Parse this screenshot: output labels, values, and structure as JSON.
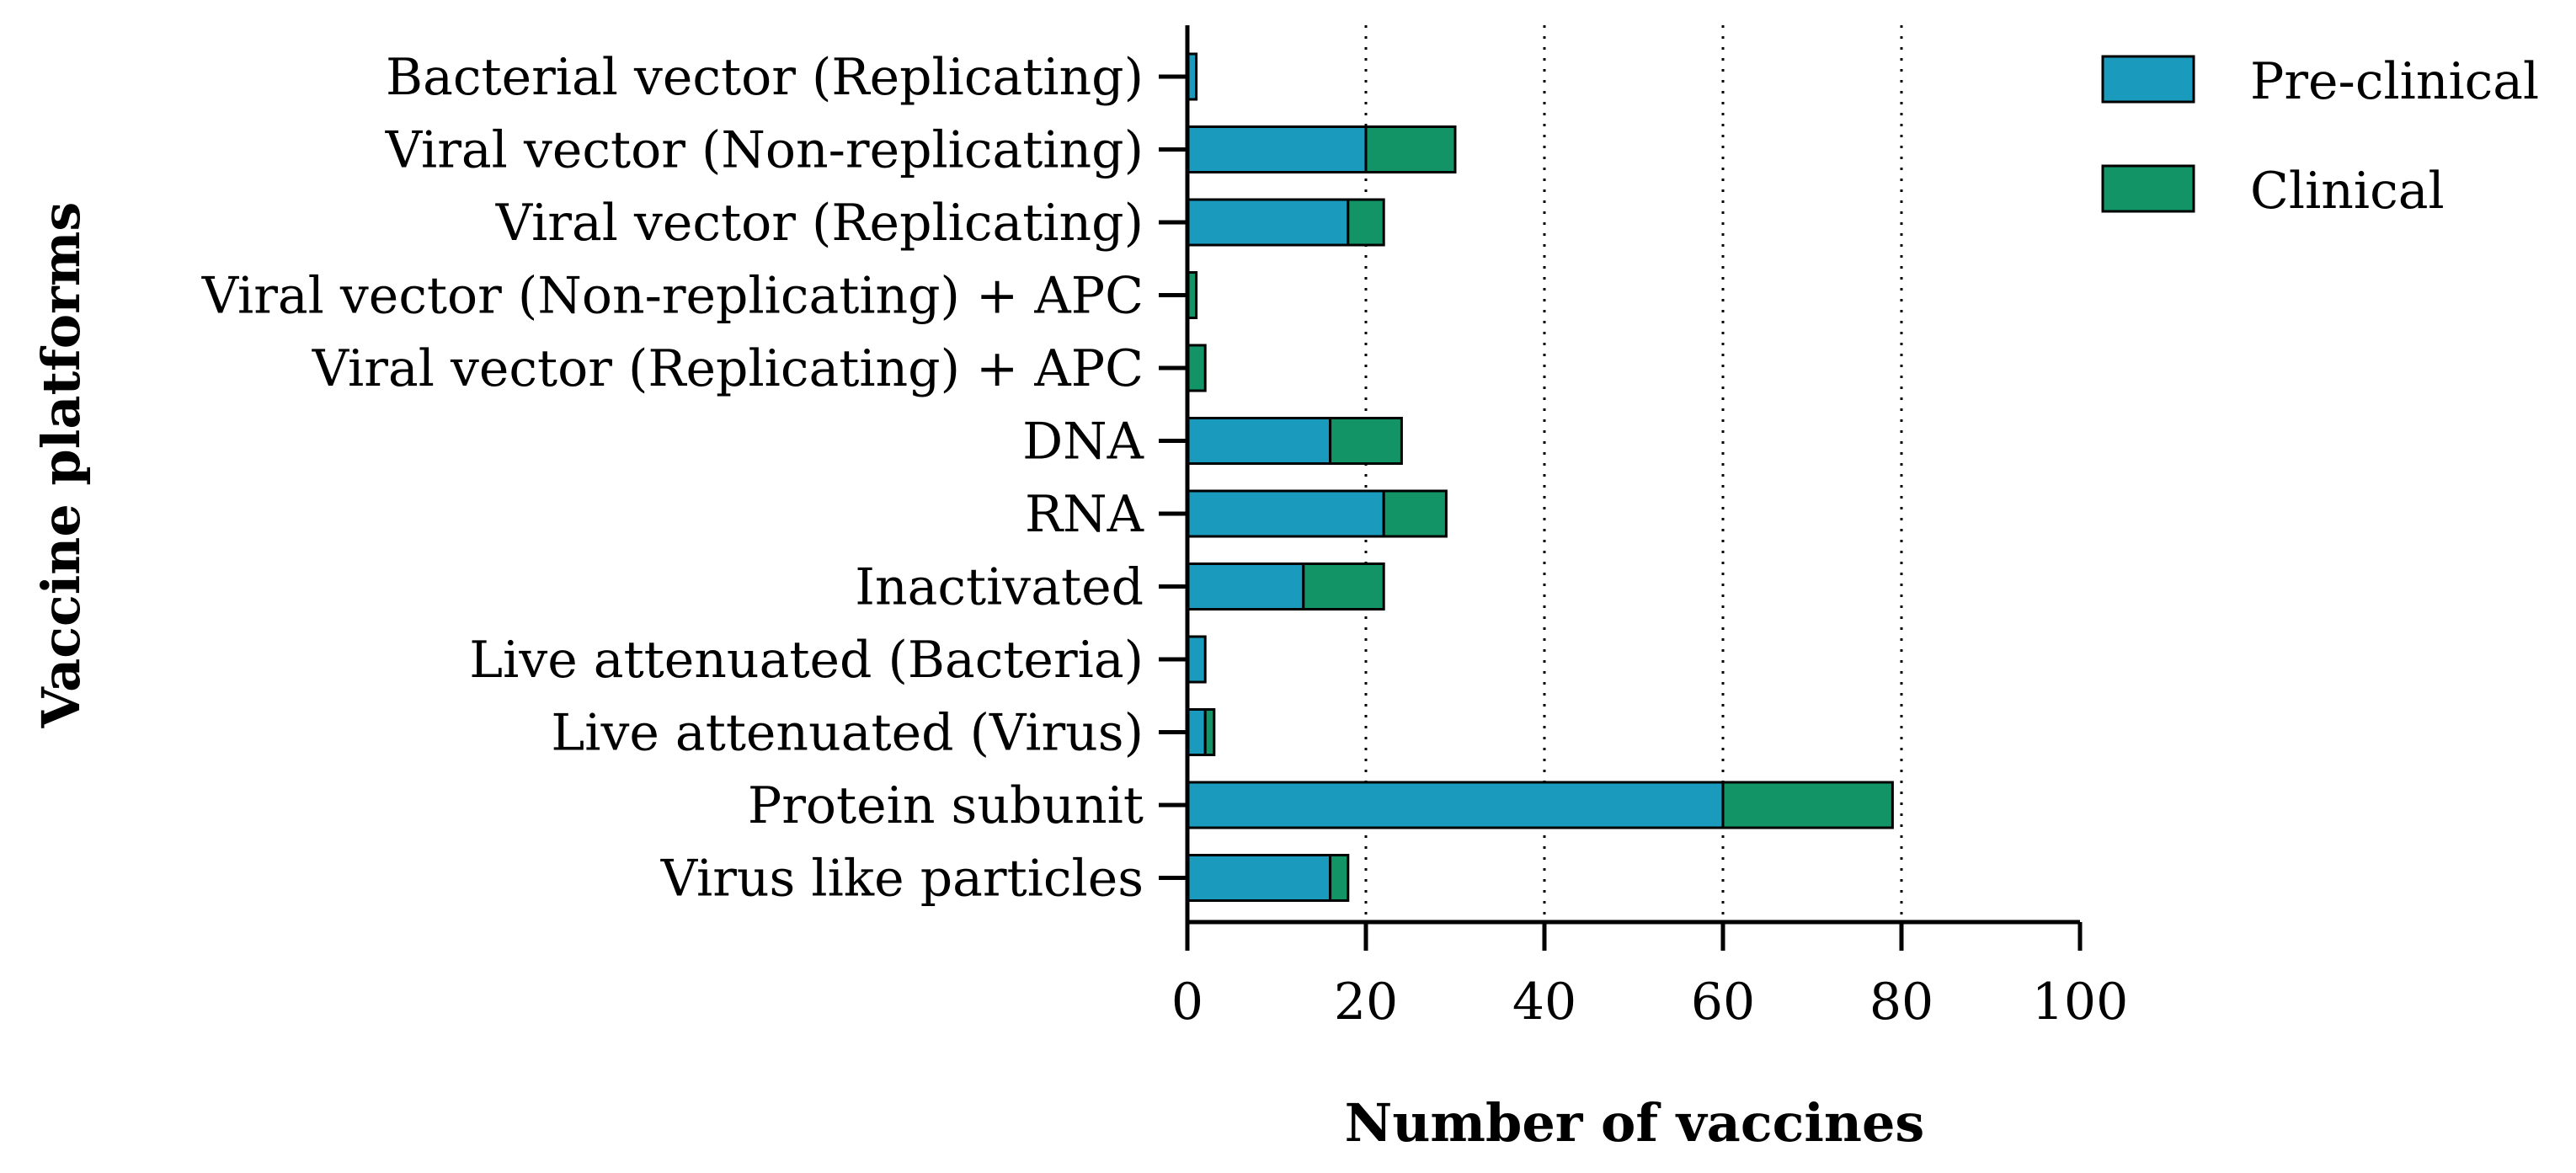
{
  "chart_data": {
    "type": "bar",
    "orientation": "horizontal",
    "stacked": true,
    "title": "",
    "xlabel": "Number of vaccines",
    "ylabel": "Vaccine platforms",
    "xlim": [
      0,
      100
    ],
    "xticks": [
      0,
      20,
      40,
      60,
      80,
      100
    ],
    "grid": "vertical dotted",
    "legend_position": "top-right",
    "categories": [
      "Bacterial vector (Replicating)",
      "Viral vector (Non-replicating)",
      "Viral vector (Replicating)",
      "Viral vector (Non-replicating) + APC",
      "Viral vector (Replicating) + APC",
      "DNA",
      "RNA",
      "Inactivated",
      "Live attenuated (Bacteria)",
      "Live attenuated (Virus)",
      "Protein subunit",
      "Virus like particles"
    ],
    "series": [
      {
        "name": "Pre-clinical",
        "color": "#1a9bbd",
        "values": [
          1,
          20,
          18,
          0,
          0,
          16,
          22,
          13,
          2,
          2,
          60,
          16
        ]
      },
      {
        "name": "Clinical",
        "color": "#129467",
        "values": [
          0,
          10,
          4,
          1,
          2,
          8,
          7,
          9,
          0,
          1,
          19,
          2
        ]
      }
    ]
  }
}
